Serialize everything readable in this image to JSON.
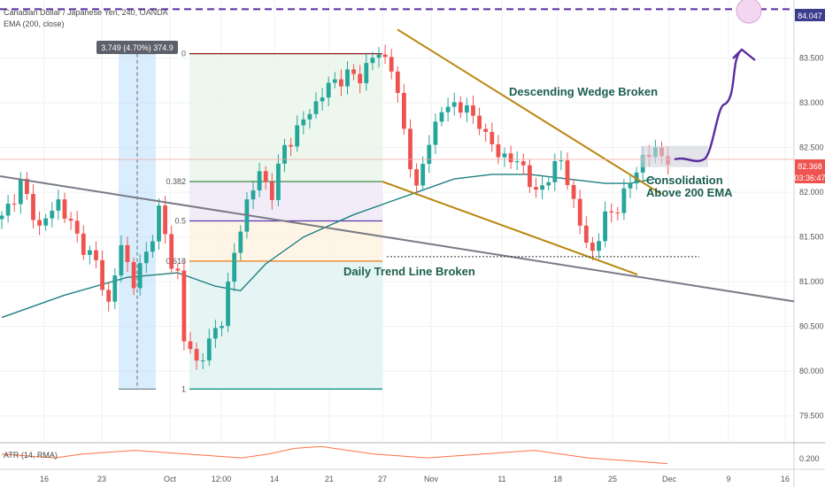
{
  "header": {
    "symbol_title": "Canadian Dollar / Japanese Yen, 240, OANDA",
    "ema_label": "EMA (200, close)",
    "atr_label": "ATR (14, RMA)"
  },
  "measure_label": "3.749 (4.70%) 374.9",
  "price_tags": {
    "target": "84.047",
    "current": "82.368",
    "countdown": "03:36:47",
    "atr_value": "0.200"
  },
  "fib_labels": [
    "0",
    "0.382",
    "0.5",
    "0.618",
    "1"
  ],
  "annotations": {
    "wedge": "Descending Wedge Broken",
    "consolidation_line1": "Consolidation",
    "consolidation_line2": "Above 200 EMA",
    "trendline": "Daily Trend Line Broken"
  },
  "colors": {
    "bull": "#26a69a",
    "bear": "#ef5350",
    "ema": "#1d7f80",
    "wedge": "#b8860b",
    "trendline": "#787b86",
    "target_line": "#5b2ca0",
    "price_tag_bg": "#ef5350",
    "target_tag_bg": "#3d3d8f",
    "fib_0": "#8b1a1a",
    "fib_0382": "#2e7d32",
    "fib_05": "#5e35b1",
    "fib_0618": "#ef6c00",
    "fib_1": "#00897b",
    "atr": "#ff7043"
  },
  "chart_data": {
    "type": "candlestick",
    "title": "Canadian Dollar / Japanese Yen, 240, OANDA",
    "y_axis": {
      "ticks": [
        "83.500",
        "83.000",
        "82.500",
        "82.000",
        "81.500",
        "81.000",
        "80.500",
        "80.000",
        "79.500"
      ],
      "range": [
        79.2,
        84.15
      ]
    },
    "x_axis": {
      "ticks": [
        "16",
        "23",
        "Oct",
        "12:00",
        "14",
        "21",
        "27",
        "Nov",
        "11",
        "18",
        "25",
        "Dec",
        "9",
        "16"
      ]
    },
    "atr_axis": {
      "ticks": [
        "0.200"
      ]
    },
    "price_path": [
      [
        0,
        81.7
      ],
      [
        3,
        82.1
      ],
      [
        6,
        81.6
      ],
      [
        9,
        81.9
      ],
      [
        12,
        81.5
      ],
      [
        15,
        81.2
      ],
      [
        17,
        80.75
      ],
      [
        19,
        81.4
      ],
      [
        21,
        81.0
      ],
      [
        23,
        81.3
      ],
      [
        25,
        81.8
      ],
      [
        27,
        81.2
      ],
      [
        28,
        81.1
      ],
      [
        29,
        80.35
      ],
      [
        31,
        80.1
      ],
      [
        33,
        80.3
      ],
      [
        35,
        80.6
      ],
      [
        37,
        81.3
      ],
      [
        39,
        81.9
      ],
      [
        41,
        82.2
      ],
      [
        43,
        82.0
      ],
      [
        45,
        82.5
      ],
      [
        47,
        82.7
      ],
      [
        49,
        82.9
      ],
      [
        51,
        83.1
      ],
      [
        53,
        83.25
      ],
      [
        55,
        83.3
      ],
      [
        57,
        83.3
      ],
      [
        59,
        83.5
      ],
      [
        60,
        83.55
      ],
      [
        61,
        83.5
      ],
      [
        62,
        83.4
      ],
      [
        64,
        82.7
      ],
      [
        66,
        82.0
      ],
      [
        68,
        82.6
      ],
      [
        70,
        82.9
      ],
      [
        72,
        83.0
      ],
      [
        74,
        82.9
      ],
      [
        76,
        82.8
      ],
      [
        77,
        82.6
      ],
      [
        79,
        82.45
      ],
      [
        81,
        82.35
      ],
      [
        83,
        82.3
      ],
      [
        85,
        81.95
      ],
      [
        87,
        82.2
      ],
      [
        89,
        82.35
      ],
      [
        91,
        81.9
      ],
      [
        93,
        81.4
      ],
      [
        94,
        81.35
      ],
      [
        96,
        81.7
      ],
      [
        98,
        81.85
      ],
      [
        100,
        82.1
      ],
      [
        102,
        82.4
      ],
      [
        104,
        82.45
      ],
      [
        106,
        82.38
      ]
    ],
    "ema_200": [
      [
        0,
        80.6
      ],
      [
        10,
        80.85
      ],
      [
        20,
        81.05
      ],
      [
        28,
        81.1
      ],
      [
        34,
        80.95
      ],
      [
        38,
        80.9
      ],
      [
        42,
        81.2
      ],
      [
        48,
        81.5
      ],
      [
        56,
        81.75
      ],
      [
        62,
        81.9
      ],
      [
        66,
        82.0
      ],
      [
        72,
        82.15
      ],
      [
        78,
        82.2
      ],
      [
        84,
        82.2
      ],
      [
        90,
        82.15
      ],
      [
        96,
        82.1
      ],
      [
        100,
        82.1
      ],
      [
        104,
        82.15
      ]
    ],
    "fibonacci": {
      "high": 83.55,
      "low": 79.8,
      "levels": [
        {
          "ratio": "0",
          "price": 83.55
        },
        {
          "ratio": "0.382",
          "price": 82.12
        },
        {
          "ratio": "0.5",
          "price": 81.68
        },
        {
          "ratio": "0.618",
          "price": 81.23
        },
        {
          "ratio": "1",
          "price": 79.8
        }
      ]
    },
    "atr_series": [
      0.21,
      0.205,
      0.2,
      0.21,
      0.215,
      0.22,
      0.215,
      0.21,
      0.205,
      0.2,
      0.21,
      0.225,
      0.23,
      0.22,
      0.21,
      0.205,
      0.2,
      0.205,
      0.21,
      0.215,
      0.22,
      0.21,
      0.2,
      0.195,
      0.19,
      0.185
    ]
  }
}
